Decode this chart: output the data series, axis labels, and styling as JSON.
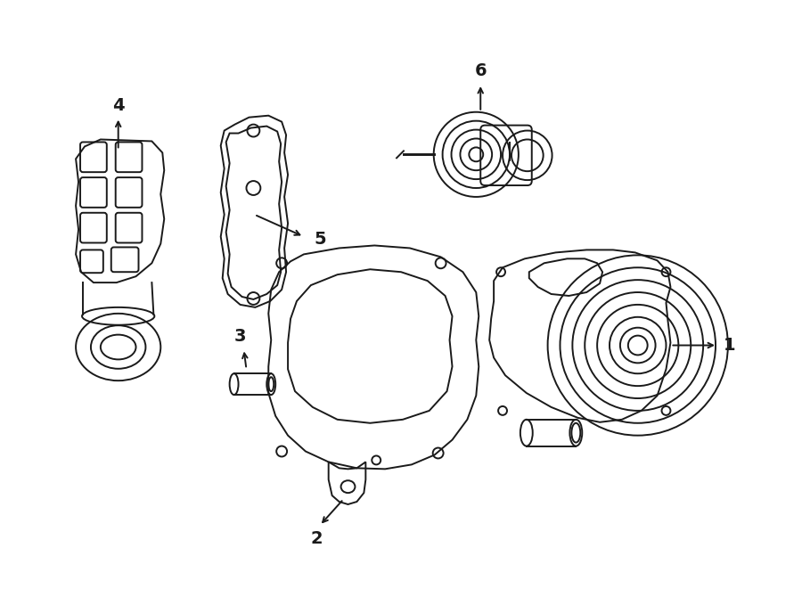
{
  "background_color": "#ffffff",
  "line_color": "#1a1a1a",
  "line_width": 1.4,
  "figsize": [
    9.0,
    6.61
  ],
  "dpi": 100
}
